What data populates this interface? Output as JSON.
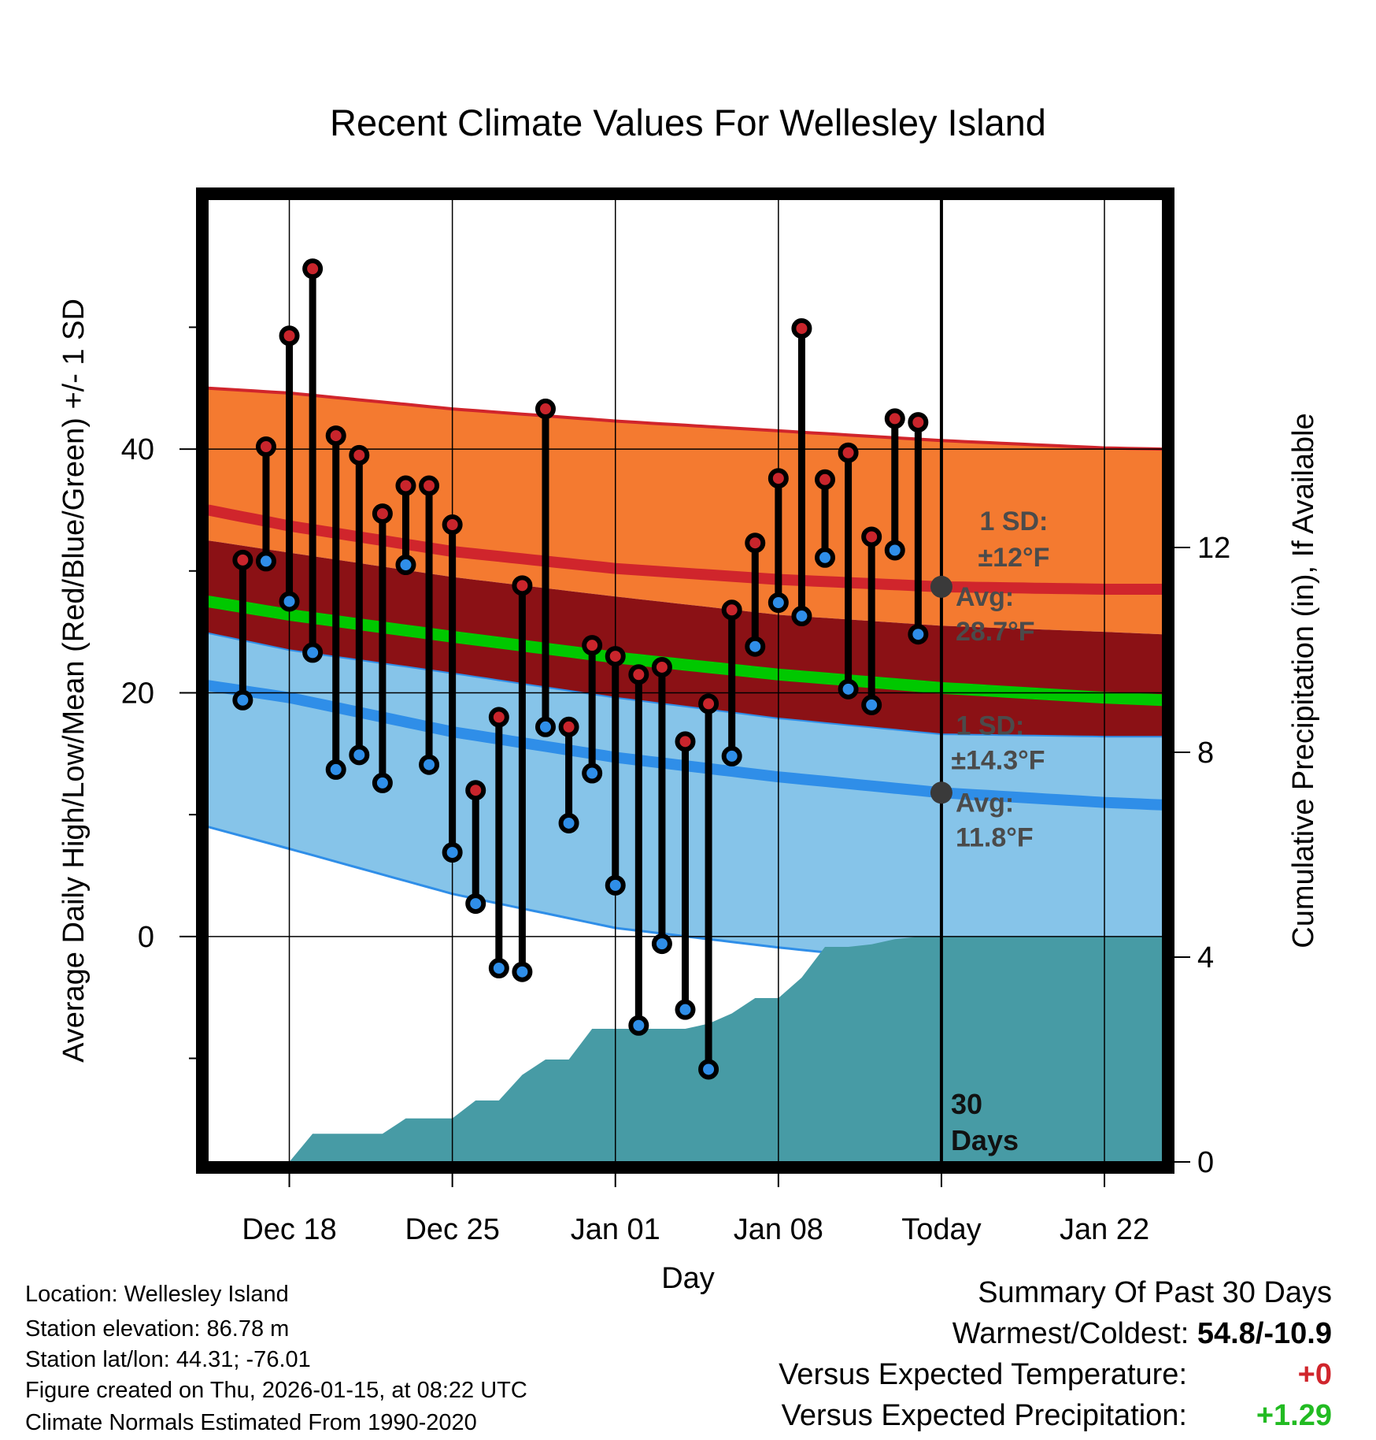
{
  "chart_data": {
    "type": "line",
    "title": "Recent Climate Values For Wellesley Island",
    "xlabel": "Day",
    "ylabel": "Average Daily High/Low/Mean (Red/Blue/Green) +/- 1 SD",
    "y2label": "Cumulative Precipitation (in), If Available",
    "xlim": [
      -3.5,
      37.5
    ],
    "ylim": [
      -18.5,
      60.5
    ],
    "y2lim": [
      0,
      18.8
    ],
    "yticks_major": [
      0,
      20,
      40
    ],
    "yticks_minor": [
      -10,
      10,
      30,
      50
    ],
    "y2ticks": [
      0,
      4,
      8,
      12
    ],
    "xticks": [
      {
        "day": 0,
        "label": "Dec 18"
      },
      {
        "day": 7,
        "label": "Dec 25"
      },
      {
        "day": 14,
        "label": "Jan 01"
      },
      {
        "day": 21,
        "label": "Jan 08"
      },
      {
        "day": 28,
        "label": "Today"
      },
      {
        "day": 35,
        "label": "Jan 22"
      }
    ],
    "normals": {
      "day": [
        -3.5,
        0,
        7,
        14,
        21,
        28,
        35,
        37.5
      ],
      "high_mean": [
        35.0,
        33.7,
        31.6,
        30.2,
        29.3,
        28.7,
        28.5,
        28.5
      ],
      "high_upper": [
        45.0,
        44.6,
        43.3,
        42.3,
        41.5,
        40.7,
        40.1,
        40.0
      ],
      "high_lower": [
        32.5,
        31.5,
        29.5,
        27.9,
        26.4,
        25.5,
        25.0,
        24.8
      ],
      "mean": [
        27.5,
        26.4,
        24.6,
        22.9,
        21.5,
        20.4,
        19.6,
        19.4
      ],
      "low_mean": [
        20.6,
        19.6,
        16.8,
        14.7,
        13.1,
        11.8,
        11.0,
        10.8
      ],
      "low_upper": [
        24.9,
        23.5,
        21.6,
        19.6,
        17.9,
        16.6,
        16.4,
        16.4
      ],
      "low_lower": [
        9.0,
        7.2,
        3.5,
        0.7,
        -0.9,
        -2.3,
        -3.1,
        -3.0
      ]
    },
    "series": [
      {
        "name": "High",
        "color": "#c9252c",
        "values": [
          30.9,
          40.2,
          49.3,
          54.8,
          41.1,
          39.5,
          34.7,
          37.0,
          37.0,
          33.8,
          12.0,
          18.0,
          28.8,
          43.3,
          17.2,
          23.9,
          23.0,
          21.5,
          22.1,
          16.0,
          19.1,
          26.8,
          32.3,
          37.6,
          49.9,
          37.5,
          39.7,
          32.8,
          42.5,
          42.2
        ]
      },
      {
        "name": "Low",
        "color": "#2f8ee8",
        "values": [
          19.4,
          30.8,
          27.5,
          23.3,
          13.7,
          14.9,
          12.6,
          30.5,
          14.1,
          6.9,
          2.7,
          -2.6,
          -2.9,
          17.2,
          9.3,
          13.4,
          4.2,
          -7.3,
          -0.6,
          -6.0,
          -10.9,
          14.8,
          23.8,
          27.4,
          26.3,
          31.1,
          20.3,
          19.0,
          31.7,
          24.8
        ]
      },
      {
        "name": "Cumulative Precipitation",
        "color": "#479ba5",
        "day": [
          -3.5,
          0,
          1,
          4,
          5,
          7,
          8,
          9,
          10,
          11,
          12,
          13,
          14,
          15,
          17,
          18,
          19,
          20,
          21,
          22,
          23,
          24,
          25,
          26,
          27,
          28,
          37.5
        ],
        "values": [
          0,
          0,
          0.55,
          0.55,
          0.85,
          0.85,
          1.2,
          1.2,
          1.7,
          2.0,
          2.0,
          2.6,
          2.6,
          2.6,
          2.6,
          2.7,
          2.9,
          3.2,
          3.2,
          3.6,
          4.2,
          4.2,
          4.25,
          4.35,
          4.4,
          4.4,
          4.4
        ]
      }
    ],
    "data_days": [
      -2,
      -1,
      0,
      1,
      2,
      3,
      4,
      5,
      6,
      7,
      8,
      9,
      10,
      11,
      12,
      13,
      14,
      15,
      16,
      17,
      18,
      19,
      20,
      21,
      22,
      23,
      24,
      25,
      26,
      27
    ],
    "today_day": 28,
    "annotations": {
      "high_sd_label": "1 SD:",
      "high_sd_value": "±12°F",
      "high_avg_label": "Avg:",
      "high_avg_value": "28.7°F",
      "low_sd_label": "1 SD:",
      "low_sd_value": "±14.3°F",
      "low_avg_label": "Avg:",
      "low_avg_value": "11.8°F",
      "days_number": "30",
      "days_word": "Days"
    },
    "colors": {
      "high_band": "#f47a30",
      "high_line": "#d0252c",
      "mid_band": "#8b1115",
      "mean_line": "#00c800",
      "low_band": "#86c4e9",
      "low_line": "#2f8ee8",
      "precip": "#479ba5"
    }
  },
  "info": {
    "location": "Location: Wellesley Island",
    "elevation": "Station elevation: 86.78 m",
    "latlon": "Station lat/lon: 44.31; -76.01",
    "created": "Figure created on Thu, 2026-01-15, at 08:22 UTC",
    "normals": "Climate Normals Estimated From 1990-2020"
  },
  "summary": {
    "title": "Summary Of Past 30 Days",
    "warmest_label": "Warmest/Coldest:",
    "warmest_value": "54.8/-10.9",
    "temp_label": "Versus Expected Temperature:",
    "temp_value": "+0",
    "temp_color": "#d0252c",
    "precip_label": "Versus Expected Precipitation:",
    "precip_value": "+1.29",
    "precip_color": "#22bb22"
  }
}
